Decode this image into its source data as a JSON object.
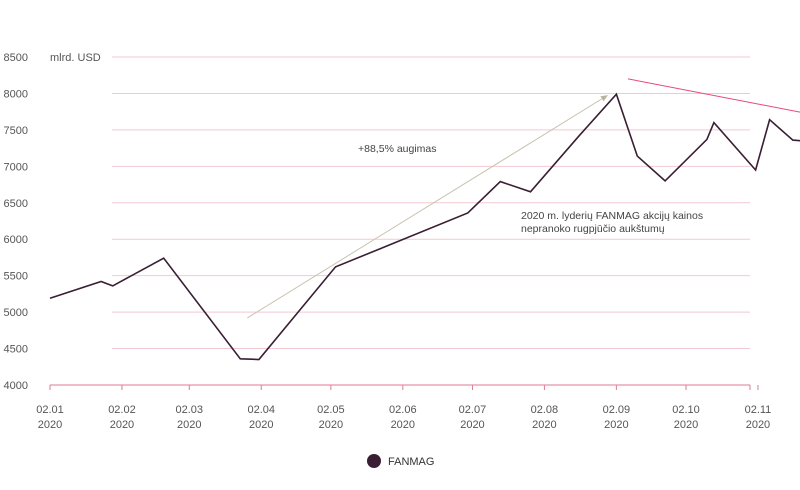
{
  "chart_data": {
    "type": "line",
    "ylabel": "mlrd. USD",
    "ylim": [
      4000,
      8500
    ],
    "yticks": [
      4000,
      4500,
      5000,
      5500,
      6000,
      6500,
      7000,
      7500,
      8000,
      8500
    ],
    "xlim": [
      "2020-01-01",
      "2020-12-01"
    ],
    "xticks": [
      {
        "date": "2020-01-01",
        "label1": "02.01",
        "label2": "2020"
      },
      {
        "date": "2020-02-01",
        "label1": "02.02",
        "label2": "2020"
      },
      {
        "date": "2020-03-01",
        "label1": "02.03",
        "label2": "2020"
      },
      {
        "date": "2020-04-01",
        "label1": "02.04",
        "label2": "2020"
      },
      {
        "date": "2020-05-01",
        "label1": "02.05",
        "label2": "2020"
      },
      {
        "date": "2020-06-01",
        "label1": "02.06",
        "label2": "2020"
      },
      {
        "date": "2020-07-01",
        "label1": "02.07",
        "label2": "2020"
      },
      {
        "date": "2020-08-01",
        "label1": "02.08",
        "label2": "2020"
      },
      {
        "date": "2020-09-01",
        "label1": "02.09",
        "label2": "2020"
      },
      {
        "date": "2020-10-01",
        "label1": "02.10",
        "label2": "2020"
      },
      {
        "date": "2020-11-01",
        "label1": "02.11",
        "label2": "2020"
      }
    ],
    "grid": true,
    "legend_position": "bottom-center",
    "series": [
      {
        "name": "FANMAG",
        "color": "#3a1e33",
        "points": [
          {
            "x": "2020-01-01",
            "y": 5190
          },
          {
            "x": "2020-01-23",
            "y": 5420
          },
          {
            "x": "2020-01-28",
            "y": 5360
          },
          {
            "x": "2020-02-19",
            "y": 5740
          },
          {
            "x": "2020-03-23",
            "y": 4360
          },
          {
            "x": "2020-03-31",
            "y": 4350
          },
          {
            "x": "2020-05-03",
            "y": 5620
          },
          {
            "x": "2020-06-29",
            "y": 6360
          },
          {
            "x": "2020-07-13",
            "y": 6790
          },
          {
            "x": "2020-07-26",
            "y": 6650
          },
          {
            "x": "2020-08-16",
            "y": 7420
          },
          {
            "x": "2020-09-01",
            "y": 7990
          },
          {
            "x": "2020-09-10",
            "y": 7140
          },
          {
            "x": "2020-09-22",
            "y": 6800
          },
          {
            "x": "2020-10-10",
            "y": 7370
          },
          {
            "x": "2020-10-13",
            "y": 7600
          },
          {
            "x": "2020-10-31",
            "y": 6950
          },
          {
            "x": "2020-11-06",
            "y": 7640
          },
          {
            "x": "2020-11-16",
            "y": 7360
          },
          {
            "x": "2020-11-27",
            "y": 7330
          },
          {
            "x": "2020-12-07",
            "y": 7440
          }
        ]
      }
    ],
    "annotations": [
      {
        "text": "+88,5% augimas",
        "arrow_color": "#c8c2b0",
        "arrow_from": {
          "x": "2020-03-26",
          "y": 4920
        },
        "arrow_to": {
          "x": "2020-08-28",
          "y": 7970
        }
      },
      {
        "text": "2020 m. lyderių FANMAG akcijų kainos",
        "text2": "nepranoko rugpjūčio aukštumų"
      },
      {
        "arrow_color": "#e8477a",
        "arrow_from": {
          "x": "2020-09-06",
          "y": 8200
        },
        "arrow_to": {
          "x": "2020-12-06",
          "y": 7640
        }
      }
    ],
    "colors": {
      "grid": "#f2c9d3",
      "axis": "#e07a95",
      "line": "#3a1e33"
    }
  }
}
